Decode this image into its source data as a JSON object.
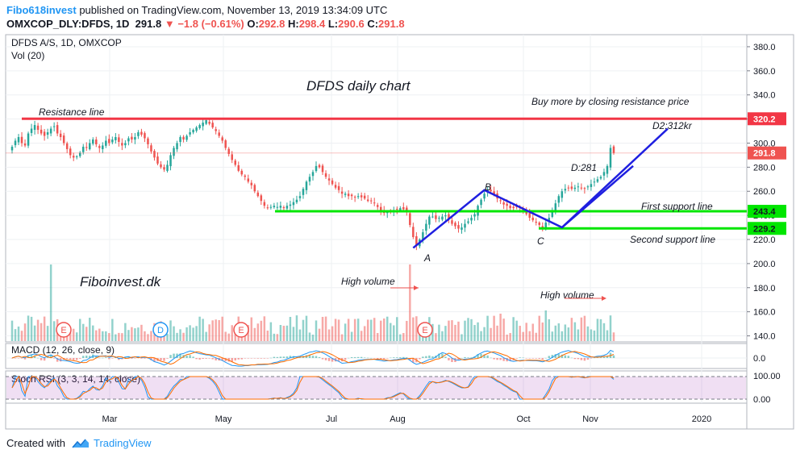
{
  "header": {
    "author": "Fibo618invest",
    "published": "published on TradingView.com, November 13, 2019 13:34:09 UTC",
    "symbol": "OMXCOP_DLY:DFDS, 1D",
    "last": "291.8",
    "change": "−1.8 (−0.61%)",
    "o_label": "O:",
    "o": "292.8",
    "h_label": "H:",
    "h": "298.4",
    "l_label": "L:",
    "l": "290.6",
    "c_label": "C:",
    "c": "291.8"
  },
  "footer": {
    "created_with": "Created with",
    "brand": "TradingView"
  },
  "colors": {
    "up": "#26a69a",
    "down": "#ef5350",
    "resistance": "#f23645",
    "support": "#00e600",
    "trend": "#1f1fe0",
    "accent": "#2196f3"
  },
  "chart_data": {
    "type": "candlestick",
    "title": "DFDS daily chart",
    "legend": {
      "symbol": "DFDS A/S, 1D, OMXCOP",
      "volume": "Vol (20)",
      "macd": "MACD (12, 26, close, 9)",
      "stoch": "Stoch RSI (3, 3, 14, 14, close)"
    },
    "price_axis": {
      "ticks": [
        "380.0",
        "360.0",
        "340.0",
        "320.0",
        "300.0",
        "280.0",
        "260.0",
        "240.0",
        "220.0",
        "200.0",
        "180.0",
        "160.0",
        "140.0"
      ],
      "range": [
        135,
        390
      ]
    },
    "macd_axis": {
      "ticks": [
        "0.0"
      ]
    },
    "stoch_axis": {
      "ticks": [
        "100.00",
        "0.00"
      ]
    },
    "time_axis": {
      "ticks": [
        "Mar",
        "May",
        "Jul",
        "Aug",
        "Oct",
        "Nov",
        "2020"
      ]
    },
    "price_labels": [
      {
        "value": 320.2,
        "text": "320.2",
        "color": "#f23645"
      },
      {
        "value": 291.8,
        "text": "291.8",
        "color": "#ef5350"
      },
      {
        "value": 243.4,
        "text": "243.4",
        "color": "#00e600"
      },
      {
        "value": 229.2,
        "text": "229.2",
        "color": "#00e600"
      }
    ],
    "lines": [
      {
        "name": "Resistance line",
        "value": 320.2
      },
      {
        "name": "First support line",
        "value": 243.4
      },
      {
        "name": "Second support line",
        "value": 229.2
      }
    ],
    "wave_points": [
      {
        "label": "A",
        "value": 213
      },
      {
        "label": "B",
        "value": 261
      },
      {
        "label": "C",
        "value": 230
      },
      {
        "label": "D:281",
        "value": 281
      },
      {
        "label": "D2:312kr",
        "value": 312
      }
    ],
    "annotations": [
      "Buy more by closing resistance price",
      "High volume",
      "High volume",
      "Fiboinvest.dk"
    ],
    "event_markers": [
      {
        "text": "E",
        "date": "2019-02-06"
      },
      {
        "text": "D",
        "date": "2019-03-22"
      },
      {
        "text": "E",
        "date": "2019-04-30"
      },
      {
        "text": "E",
        "date": "2019-08-13"
      }
    ],
    "close_series": [
      297,
      302,
      305,
      300,
      298,
      308,
      312,
      315,
      311,
      308,
      306,
      309,
      312,
      314,
      308,
      305,
      300,
      295,
      290,
      288,
      289,
      292,
      297,
      296,
      300,
      303,
      299,
      296,
      298,
      302,
      300,
      303,
      305,
      301,
      298,
      300,
      304,
      303,
      305,
      309,
      307,
      304,
      299,
      293,
      288,
      283,
      280,
      278,
      282,
      290,
      296,
      300,
      305,
      303,
      306,
      309,
      311,
      313,
      315,
      317,
      319,
      316,
      313,
      310,
      306,
      302,
      296,
      291,
      286,
      282,
      277,
      274,
      272,
      268,
      265,
      260,
      256,
      252,
      248,
      246,
      247,
      248,
      247,
      248,
      246,
      248,
      249,
      251,
      253,
      256,
      262,
      268,
      272,
      276,
      281,
      280,
      276,
      272,
      269,
      266,
      263,
      261,
      258,
      258,
      256,
      256,
      255,
      256,
      255,
      254,
      252,
      252,
      250,
      247,
      244,
      242,
      243,
      243,
      244,
      245,
      246,
      245,
      243,
      232,
      222,
      215,
      220,
      226,
      233,
      239,
      239,
      237,
      238,
      239,
      240,
      237,
      233,
      231,
      229,
      230,
      233,
      235,
      238,
      241,
      248,
      253,
      258,
      261,
      260,
      257,
      254,
      252,
      249,
      248,
      246,
      246,
      247,
      246,
      244,
      241,
      238,
      236,
      234,
      232,
      230,
      234,
      238,
      244,
      250,
      256,
      260,
      262,
      263,
      262,
      263,
      264,
      263,
      262,
      264,
      266,
      268,
      270,
      272,
      276,
      281,
      296,
      291.8
    ]
  }
}
